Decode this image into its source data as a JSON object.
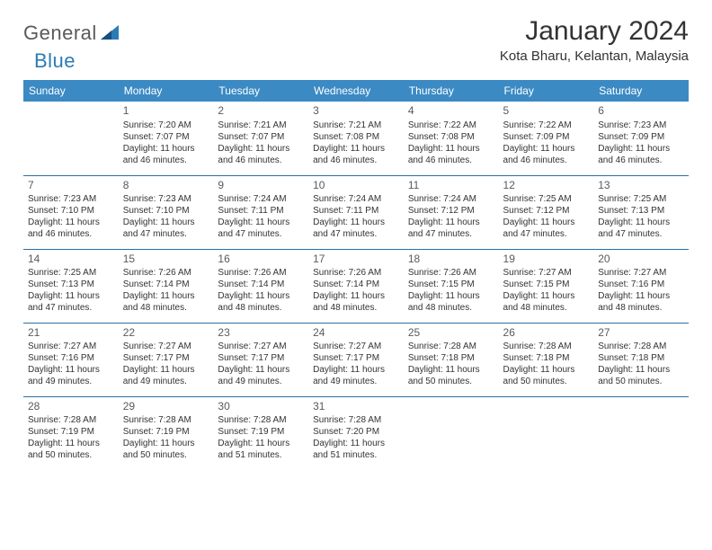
{
  "brand": {
    "part1": "General",
    "part2": "Blue"
  },
  "title": "January 2024",
  "location": "Kota Bharu, Kelantan, Malaysia",
  "colors": {
    "header_bg": "#3b8ac4",
    "header_text": "#ffffff",
    "row_border": "#2c6ea3",
    "brand_gray": "#5a5a5a",
    "brand_blue": "#2c7bb6",
    "text": "#333333",
    "background": "#ffffff"
  },
  "daysOfWeek": [
    "Sunday",
    "Monday",
    "Tuesday",
    "Wednesday",
    "Thursday",
    "Friday",
    "Saturday"
  ],
  "weeks": [
    [
      null,
      {
        "n": "1",
        "sr": "Sunrise: 7:20 AM",
        "ss": "Sunset: 7:07 PM",
        "d1": "Daylight: 11 hours",
        "d2": "and 46 minutes."
      },
      {
        "n": "2",
        "sr": "Sunrise: 7:21 AM",
        "ss": "Sunset: 7:07 PM",
        "d1": "Daylight: 11 hours",
        "d2": "and 46 minutes."
      },
      {
        "n": "3",
        "sr": "Sunrise: 7:21 AM",
        "ss": "Sunset: 7:08 PM",
        "d1": "Daylight: 11 hours",
        "d2": "and 46 minutes."
      },
      {
        "n": "4",
        "sr": "Sunrise: 7:22 AM",
        "ss": "Sunset: 7:08 PM",
        "d1": "Daylight: 11 hours",
        "d2": "and 46 minutes."
      },
      {
        "n": "5",
        "sr": "Sunrise: 7:22 AM",
        "ss": "Sunset: 7:09 PM",
        "d1": "Daylight: 11 hours",
        "d2": "and 46 minutes."
      },
      {
        "n": "6",
        "sr": "Sunrise: 7:23 AM",
        "ss": "Sunset: 7:09 PM",
        "d1": "Daylight: 11 hours",
        "d2": "and 46 minutes."
      }
    ],
    [
      {
        "n": "7",
        "sr": "Sunrise: 7:23 AM",
        "ss": "Sunset: 7:10 PM",
        "d1": "Daylight: 11 hours",
        "d2": "and 46 minutes."
      },
      {
        "n": "8",
        "sr": "Sunrise: 7:23 AM",
        "ss": "Sunset: 7:10 PM",
        "d1": "Daylight: 11 hours",
        "d2": "and 47 minutes."
      },
      {
        "n": "9",
        "sr": "Sunrise: 7:24 AM",
        "ss": "Sunset: 7:11 PM",
        "d1": "Daylight: 11 hours",
        "d2": "and 47 minutes."
      },
      {
        "n": "10",
        "sr": "Sunrise: 7:24 AM",
        "ss": "Sunset: 7:11 PM",
        "d1": "Daylight: 11 hours",
        "d2": "and 47 minutes."
      },
      {
        "n": "11",
        "sr": "Sunrise: 7:24 AM",
        "ss": "Sunset: 7:12 PM",
        "d1": "Daylight: 11 hours",
        "d2": "and 47 minutes."
      },
      {
        "n": "12",
        "sr": "Sunrise: 7:25 AM",
        "ss": "Sunset: 7:12 PM",
        "d1": "Daylight: 11 hours",
        "d2": "and 47 minutes."
      },
      {
        "n": "13",
        "sr": "Sunrise: 7:25 AM",
        "ss": "Sunset: 7:13 PM",
        "d1": "Daylight: 11 hours",
        "d2": "and 47 minutes."
      }
    ],
    [
      {
        "n": "14",
        "sr": "Sunrise: 7:25 AM",
        "ss": "Sunset: 7:13 PM",
        "d1": "Daylight: 11 hours",
        "d2": "and 47 minutes."
      },
      {
        "n": "15",
        "sr": "Sunrise: 7:26 AM",
        "ss": "Sunset: 7:14 PM",
        "d1": "Daylight: 11 hours",
        "d2": "and 48 minutes."
      },
      {
        "n": "16",
        "sr": "Sunrise: 7:26 AM",
        "ss": "Sunset: 7:14 PM",
        "d1": "Daylight: 11 hours",
        "d2": "and 48 minutes."
      },
      {
        "n": "17",
        "sr": "Sunrise: 7:26 AM",
        "ss": "Sunset: 7:14 PM",
        "d1": "Daylight: 11 hours",
        "d2": "and 48 minutes."
      },
      {
        "n": "18",
        "sr": "Sunrise: 7:26 AM",
        "ss": "Sunset: 7:15 PM",
        "d1": "Daylight: 11 hours",
        "d2": "and 48 minutes."
      },
      {
        "n": "19",
        "sr": "Sunrise: 7:27 AM",
        "ss": "Sunset: 7:15 PM",
        "d1": "Daylight: 11 hours",
        "d2": "and 48 minutes."
      },
      {
        "n": "20",
        "sr": "Sunrise: 7:27 AM",
        "ss": "Sunset: 7:16 PM",
        "d1": "Daylight: 11 hours",
        "d2": "and 48 minutes."
      }
    ],
    [
      {
        "n": "21",
        "sr": "Sunrise: 7:27 AM",
        "ss": "Sunset: 7:16 PM",
        "d1": "Daylight: 11 hours",
        "d2": "and 49 minutes."
      },
      {
        "n": "22",
        "sr": "Sunrise: 7:27 AM",
        "ss": "Sunset: 7:17 PM",
        "d1": "Daylight: 11 hours",
        "d2": "and 49 minutes."
      },
      {
        "n": "23",
        "sr": "Sunrise: 7:27 AM",
        "ss": "Sunset: 7:17 PM",
        "d1": "Daylight: 11 hours",
        "d2": "and 49 minutes."
      },
      {
        "n": "24",
        "sr": "Sunrise: 7:27 AM",
        "ss": "Sunset: 7:17 PM",
        "d1": "Daylight: 11 hours",
        "d2": "and 49 minutes."
      },
      {
        "n": "25",
        "sr": "Sunrise: 7:28 AM",
        "ss": "Sunset: 7:18 PM",
        "d1": "Daylight: 11 hours",
        "d2": "and 50 minutes."
      },
      {
        "n": "26",
        "sr": "Sunrise: 7:28 AM",
        "ss": "Sunset: 7:18 PM",
        "d1": "Daylight: 11 hours",
        "d2": "and 50 minutes."
      },
      {
        "n": "27",
        "sr": "Sunrise: 7:28 AM",
        "ss": "Sunset: 7:18 PM",
        "d1": "Daylight: 11 hours",
        "d2": "and 50 minutes."
      }
    ],
    [
      {
        "n": "28",
        "sr": "Sunrise: 7:28 AM",
        "ss": "Sunset: 7:19 PM",
        "d1": "Daylight: 11 hours",
        "d2": "and 50 minutes."
      },
      {
        "n": "29",
        "sr": "Sunrise: 7:28 AM",
        "ss": "Sunset: 7:19 PM",
        "d1": "Daylight: 11 hours",
        "d2": "and 50 minutes."
      },
      {
        "n": "30",
        "sr": "Sunrise: 7:28 AM",
        "ss": "Sunset: 7:19 PM",
        "d1": "Daylight: 11 hours",
        "d2": "and 51 minutes."
      },
      {
        "n": "31",
        "sr": "Sunrise: 7:28 AM",
        "ss": "Sunset: 7:20 PM",
        "d1": "Daylight: 11 hours",
        "d2": "and 51 minutes."
      },
      null,
      null,
      null
    ]
  ]
}
